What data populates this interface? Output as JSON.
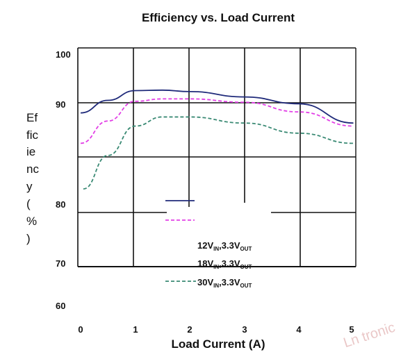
{
  "chart_data": {
    "type": "line",
    "title": "Efficiency vs. Load Current",
    "xlabel": "Load Current (A)",
    "ylabel_lines": [
      "Ef",
      "fic",
      "ie",
      "nc",
      "y",
      "(",
      "%",
      ")"
    ],
    "xlim": [
      0,
      5
    ],
    "x_ticks": [
      "0",
      "1",
      "2",
      "3",
      "4",
      "5"
    ],
    "y_ticks": [
      "100",
      "90",
      "80",
      "70",
      "60"
    ],
    "series": [
      {
        "name": "12VIN,3.3VOUT",
        "name_parts": [
          "12V",
          "IN",
          ",3.3V",
          "OUT"
        ],
        "color": "#1f2a7a",
        "dash": "solid",
        "x": [
          0,
          0.5,
          1,
          1.5,
          2,
          3,
          4,
          5
        ],
        "y": [
          89,
          90.5,
          92.5,
          92.6,
          92.3,
          91.2,
          89.9,
          88.0
        ]
      },
      {
        "name": "18VIN,3.3VOUT",
        "name_parts": [
          "18V",
          "IN",
          ",3.3V",
          "OUT"
        ],
        "color": "#e23ee6",
        "dash": "dashed",
        "x": [
          0,
          0.5,
          1,
          1.5,
          2,
          3,
          4,
          5
        ],
        "y": [
          86.0,
          88.2,
          90.3,
          90.8,
          90.8,
          90.1,
          89.1,
          87.7
        ]
      },
      {
        "name": "30VIN,3.3VOUT",
        "name_parts": [
          "30V",
          "IN",
          ",3.3V",
          "OUT"
        ],
        "color": "#3a8a74",
        "dash": "dashed",
        "x": [
          0.05,
          0.5,
          1,
          1.5,
          2,
          3,
          4,
          5
        ],
        "y": [
          81.5,
          84.8,
          87.7,
          88.6,
          88.6,
          88.0,
          87.0,
          86.0
        ]
      }
    ],
    "grid": true,
    "legend_placement": "bottom-center"
  },
  "watermark": {
    "text": "Ln tronic",
    "color": "#d99a9a"
  }
}
